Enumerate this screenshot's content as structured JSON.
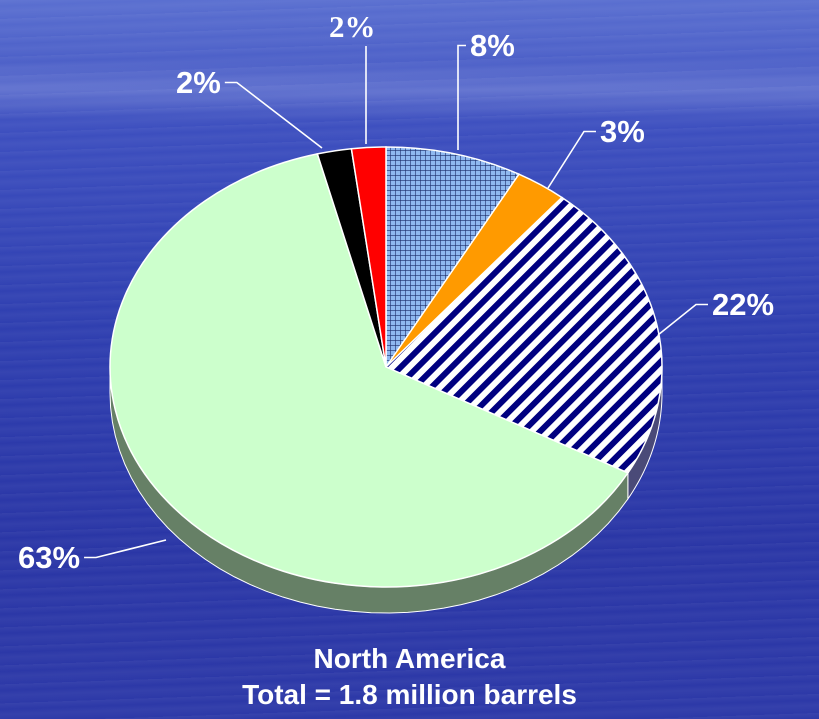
{
  "chart_data": {
    "type": "pie",
    "labels": [
      "8%",
      "3%",
      "22%",
      "63%",
      "2%",
      "2%"
    ],
    "values": [
      8,
      3,
      22,
      63,
      2,
      2
    ],
    "slices": [
      {
        "value": 8,
        "label": "8%",
        "color": "#8fb8f0",
        "pattern": "grid"
      },
      {
        "value": 3,
        "label": "3%",
        "color": "#ff9a00",
        "pattern": "solid"
      },
      {
        "value": 22,
        "label": "22%",
        "color": "#000080",
        "pattern": "diagonal-stripes"
      },
      {
        "value": 63,
        "label": "63%",
        "color": "#ccffcc",
        "pattern": "solid"
      },
      {
        "value": 2,
        "label": "2%",
        "color": "#000000",
        "pattern": "solid"
      },
      {
        "value": 2,
        "label": "2%",
        "color": "#ff0000",
        "pattern": "solid"
      }
    ],
    "subtitle": "North America",
    "total": "Total = 1.8 million barrels",
    "style": "3d-tilted"
  }
}
